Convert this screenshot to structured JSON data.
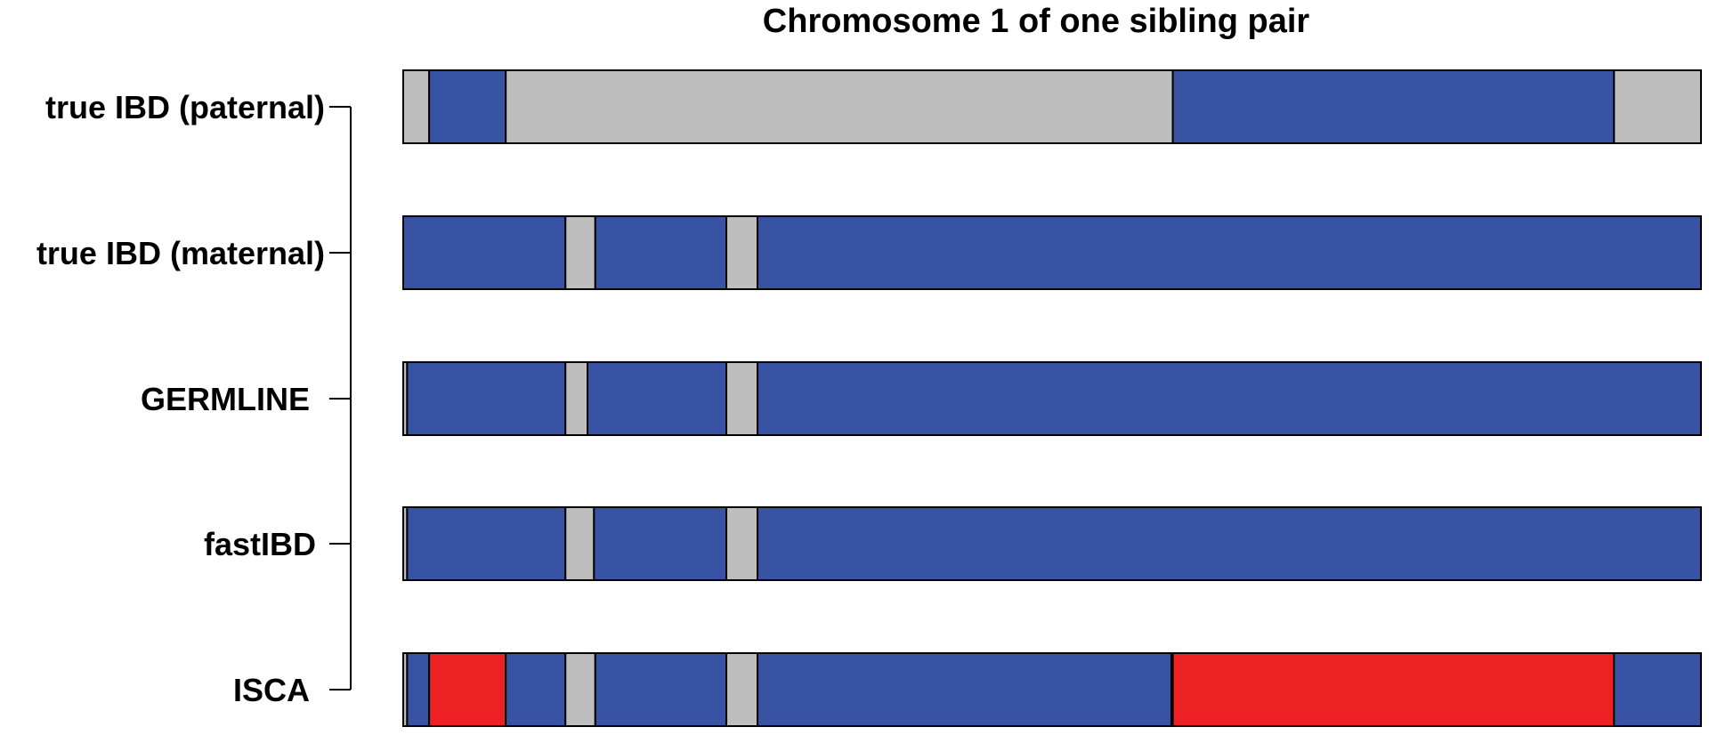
{
  "chart_data": {
    "type": "bar",
    "title": "Chromosome 1 of one sibling pair",
    "xlabel": "",
    "ylabel": "",
    "xlim": [
      0,
      1
    ],
    "grid": false,
    "legend": "none",
    "colors": {
      "ibd": "#3953a4",
      "not_ibd": "#bebebe",
      "error": "#ed2024"
    },
    "categories": [
      "true IBD (paternal)",
      "true IBD (maternal)",
      "GERMLINE",
      "fastIBD",
      "ISCA"
    ],
    "series": [
      {
        "segments": [
          {
            "start": 0.0,
            "end": 0.02,
            "state": "not_ibd"
          },
          {
            "start": 0.02,
            "end": 0.079,
            "state": "ibd"
          },
          {
            "start": 0.079,
            "end": 0.593,
            "state": "not_ibd"
          },
          {
            "start": 0.593,
            "end": 0.933,
            "state": "ibd"
          },
          {
            "start": 0.933,
            "end": 1.0,
            "state": "not_ibd"
          }
        ]
      },
      {
        "segments": [
          {
            "start": 0.0,
            "end": 0.125,
            "state": "ibd"
          },
          {
            "start": 0.125,
            "end": 0.148,
            "state": "not_ibd"
          },
          {
            "start": 0.148,
            "end": 0.249,
            "state": "ibd"
          },
          {
            "start": 0.249,
            "end": 0.273,
            "state": "not_ibd"
          },
          {
            "start": 0.273,
            "end": 1.0,
            "state": "ibd"
          }
        ]
      },
      {
        "segments": [
          {
            "start": 0.0,
            "end": 0.003,
            "state": "not_ibd"
          },
          {
            "start": 0.003,
            "end": 0.125,
            "state": "ibd"
          },
          {
            "start": 0.125,
            "end": 0.142,
            "state": "not_ibd"
          },
          {
            "start": 0.142,
            "end": 0.249,
            "state": "ibd"
          },
          {
            "start": 0.249,
            "end": 0.273,
            "state": "not_ibd"
          },
          {
            "start": 0.273,
            "end": 1.0,
            "state": "ibd"
          }
        ]
      },
      {
        "segments": [
          {
            "start": 0.0,
            "end": 0.003,
            "state": "not_ibd"
          },
          {
            "start": 0.003,
            "end": 0.125,
            "state": "ibd"
          },
          {
            "start": 0.125,
            "end": 0.147,
            "state": "not_ibd"
          },
          {
            "start": 0.147,
            "end": 0.249,
            "state": "ibd"
          },
          {
            "start": 0.249,
            "end": 0.273,
            "state": "not_ibd"
          },
          {
            "start": 0.273,
            "end": 1.0,
            "state": "ibd"
          }
        ]
      },
      {
        "segments": [
          {
            "start": 0.0,
            "end": 0.003,
            "state": "not_ibd"
          },
          {
            "start": 0.003,
            "end": 0.02,
            "state": "ibd"
          },
          {
            "start": 0.02,
            "end": 0.079,
            "state": "error"
          },
          {
            "start": 0.079,
            "end": 0.125,
            "state": "ibd"
          },
          {
            "start": 0.125,
            "end": 0.148,
            "state": "not_ibd"
          },
          {
            "start": 0.148,
            "end": 0.249,
            "state": "ibd"
          },
          {
            "start": 0.249,
            "end": 0.273,
            "state": "not_ibd"
          },
          {
            "start": 0.273,
            "end": 0.592,
            "state": "ibd"
          },
          {
            "start": 0.592,
            "end": 0.593,
            "state": "not_ibd"
          },
          {
            "start": 0.593,
            "end": 0.933,
            "state": "error"
          },
          {
            "start": 0.933,
            "end": 1.0,
            "state": "ibd"
          }
        ]
      }
    ]
  }
}
